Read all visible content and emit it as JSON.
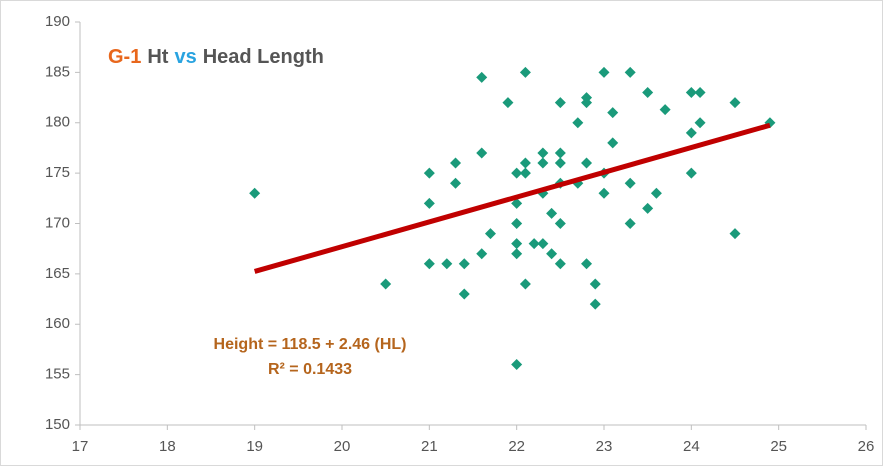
{
  "chart_data": {
    "type": "scatter",
    "title": [
      "G-1",
      "Ht",
      "vs",
      "Head Length"
    ],
    "title_colors": [
      "#e8671c",
      "#555555",
      "#29a3e0",
      "#555555"
    ],
    "annotations": [
      "Height = 118.5 + 2.46 (HL)",
      "R² = 0.1433"
    ],
    "annotation_color": "#b5651d",
    "series": [
      {
        "color": "#1a9a7a",
        "x": [
          19,
          20.5,
          21,
          21,
          21,
          21.2,
          21.3,
          21.3,
          21.4,
          21.4,
          21.6,
          21.6,
          21.6,
          21.7,
          21.9,
          22,
          22,
          22,
          22,
          22,
          22,
          22.1,
          22.1,
          22.1,
          22.1,
          22.2,
          22.3,
          22.3,
          22.3,
          22.3,
          22.4,
          22.4,
          22.5,
          22.5,
          22.5,
          22.5,
          22.5,
          22.5,
          22.7,
          22.7,
          22.8,
          22.8,
          22.8,
          22.8,
          22.9,
          22.9,
          23,
          23,
          23,
          23.1,
          23.1,
          23.3,
          23.3,
          23.3,
          23.5,
          23.5,
          23.6,
          23.7,
          24,
          24,
          24,
          24.1,
          24.1,
          24.5,
          24.5,
          24.9
        ],
        "values": [
          173,
          164,
          175,
          172,
          166,
          166,
          176,
          174,
          166,
          163,
          184.5,
          177,
          167,
          169,
          182,
          175,
          172,
          170,
          168,
          167,
          156,
          185,
          176,
          175,
          164,
          168,
          177,
          176,
          173,
          168,
          171,
          167,
          182,
          177,
          176,
          174,
          170,
          166,
          180,
          174,
          182.5,
          182,
          176,
          166,
          164,
          162,
          185,
          175,
          173,
          181,
          178,
          185,
          174,
          170,
          183,
          171.5,
          173,
          181.3,
          183,
          179,
          175,
          183,
          180,
          182,
          169,
          180
        ]
      }
    ],
    "trendline": {
      "intercept": 118.5,
      "slope": 2.46,
      "xrange": [
        19,
        24.9
      ],
      "color": "#c00000"
    },
    "xlim": [
      17,
      26
    ],
    "xticks": [
      17,
      18,
      19,
      20,
      21,
      22,
      23,
      24,
      25,
      26
    ],
    "ylim": [
      150,
      190
    ],
    "yticks": [
      150,
      155,
      160,
      165,
      170,
      175,
      180,
      185,
      190
    ]
  }
}
